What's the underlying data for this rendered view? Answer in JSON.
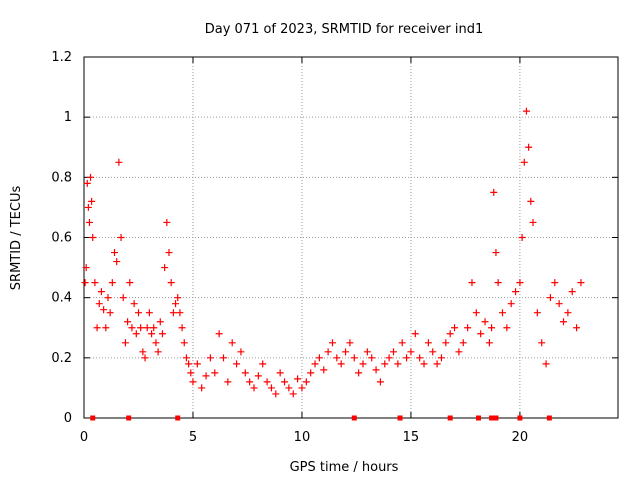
{
  "chart_data": {
    "type": "scatter",
    "title": "Day 071 of 2023, SRMTID for receiver ind1",
    "xlabel": "GPS time / hours",
    "ylabel": "SRMTID / TECUs",
    "xlim": [
      0,
      24.5
    ],
    "ylim": [
      0,
      1.2
    ],
    "x_ticks": [
      "0",
      "5",
      "10",
      "15",
      "20"
    ],
    "y_ticks": [
      "0",
      "0.2",
      "0.4",
      "0.6",
      "0.8",
      "1",
      "1.2"
    ],
    "grid": true,
    "marker": "+",
    "series_color": "#ff0000",
    "series": [
      {
        "name": "SRMTID",
        "x": [
          0.05,
          0.1,
          0.15,
          0.2,
          0.25,
          0.3,
          0.35,
          0.4,
          0.5,
          0.6,
          0.7,
          0.8,
          0.9,
          1.0,
          1.1,
          1.2,
          1.3,
          1.4,
          1.5,
          1.6,
          1.7,
          1.8,
          1.9,
          2.0,
          2.1,
          2.2,
          2.3,
          2.4,
          2.5,
          2.6,
          2.7,
          2.8,
          2.9,
          3.0,
          3.1,
          3.2,
          3.3,
          3.4,
          3.5,
          3.6,
          3.7,
          3.8,
          3.9,
          4.0,
          4.1,
          4.2,
          4.3,
          4.4,
          4.5,
          4.6,
          4.7,
          4.8,
          4.9,
          5.0,
          5.2,
          5.4,
          5.6,
          5.8,
          6.0,
          6.2,
          6.4,
          6.6,
          6.8,
          7.0,
          7.2,
          7.4,
          7.6,
          7.8,
          8.0,
          8.2,
          8.4,
          8.6,
          8.8,
          9.0,
          9.2,
          9.4,
          9.6,
          9.8,
          10.0,
          10.2,
          10.4,
          10.6,
          10.8,
          11.0,
          11.2,
          11.4,
          11.6,
          11.8,
          12.0,
          12.2,
          12.4,
          12.6,
          12.8,
          13.0,
          13.2,
          13.4,
          13.6,
          13.8,
          14.0,
          14.2,
          14.4,
          14.6,
          14.8,
          15.0,
          15.2,
          15.4,
          15.6,
          15.8,
          16.0,
          16.2,
          16.4,
          16.6,
          16.8,
          17.0,
          17.2,
          17.4,
          17.6,
          17.8,
          18.0,
          18.2,
          18.4,
          18.6,
          18.7,
          18.8,
          18.9,
          19.0,
          19.2,
          19.4,
          19.6,
          19.8,
          20.0,
          20.1,
          20.2,
          20.3,
          20.4,
          20.5,
          20.6,
          20.8,
          21.0,
          21.2,
          21.4,
          21.6,
          21.8,
          22.0,
          22.2,
          22.4,
          22.6,
          22.8
        ],
        "y": [
          0.45,
          0.5,
          0.78,
          0.7,
          0.65,
          0.8,
          0.72,
          0.6,
          0.45,
          0.3,
          0.38,
          0.42,
          0.36,
          0.3,
          0.4,
          0.35,
          0.45,
          0.55,
          0.52,
          0.85,
          0.6,
          0.4,
          0.25,
          0.32,
          0.45,
          0.3,
          0.38,
          0.28,
          0.35,
          0.3,
          0.22,
          0.2,
          0.3,
          0.35,
          0.28,
          0.3,
          0.25,
          0.22,
          0.32,
          0.28,
          0.5,
          0.65,
          0.55,
          0.45,
          0.35,
          0.38,
          0.4,
          0.35,
          0.3,
          0.25,
          0.2,
          0.18,
          0.15,
          0.12,
          0.18,
          0.1,
          0.14,
          0.2,
          0.15,
          0.28,
          0.2,
          0.12,
          0.25,
          0.18,
          0.22,
          0.15,
          0.12,
          0.1,
          0.14,
          0.18,
          0.12,
          0.1,
          0.08,
          0.15,
          0.12,
          0.1,
          0.08,
          0.13,
          0.1,
          0.12,
          0.15,
          0.18,
          0.2,
          0.16,
          0.22,
          0.25,
          0.2,
          0.18,
          0.22,
          0.25,
          0.2,
          0.15,
          0.18,
          0.22,
          0.2,
          0.16,
          0.12,
          0.18,
          0.2,
          0.22,
          0.18,
          0.25,
          0.2,
          0.22,
          0.28,
          0.2,
          0.18,
          0.25,
          0.22,
          0.18,
          0.2,
          0.25,
          0.28,
          0.3,
          0.22,
          0.25,
          0.3,
          0.45,
          0.35,
          0.28,
          0.32,
          0.25,
          0.3,
          0.75,
          0.55,
          0.45,
          0.35,
          0.3,
          0.38,
          0.42,
          0.45,
          0.6,
          0.85,
          1.02,
          0.9,
          0.72,
          0.65,
          0.35,
          0.25,
          0.18,
          0.4,
          0.45,
          0.38,
          0.32,
          0.35,
          0.42,
          0.3,
          0.45
        ]
      }
    ],
    "baseline_markers": {
      "y": 0,
      "x": [
        0.4,
        2.05,
        4.3,
        12.4,
        14.5,
        16.8,
        18.1,
        18.7,
        18.9,
        20.0,
        21.35
      ]
    }
  }
}
